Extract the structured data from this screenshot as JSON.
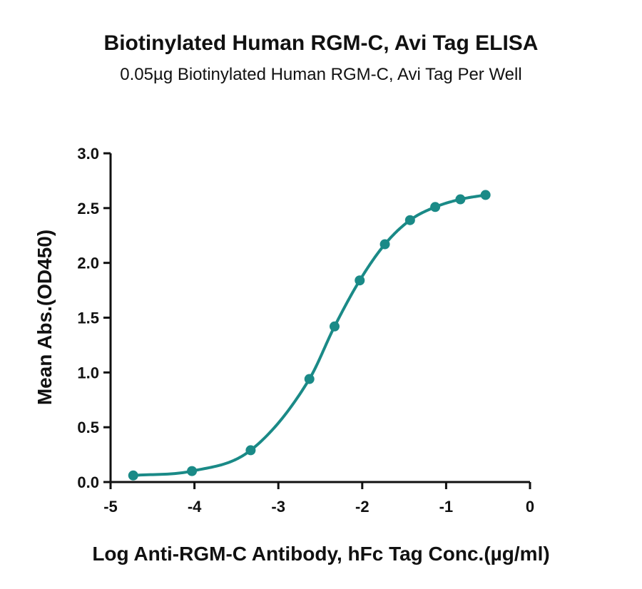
{
  "chart_data": {
    "type": "scatter",
    "title": "Biotinylated Human RGM-C, Avi Tag ELISA",
    "subtitle": "0.05µg Biotinylated Human RGM-C, Avi Tag Per Well",
    "xlabel": "Log Anti-RGM-C Antibody, hFc Tag Conc.(µg/ml)",
    "ylabel": "Mean Abs.(OD450)",
    "xlim": [
      -5,
      0
    ],
    "ylim": [
      0,
      3.0
    ],
    "x_ticks": [
      -5,
      -4,
      -3,
      -2,
      -1,
      0
    ],
    "x_tick_labels": [
      "-5",
      "-4",
      "-3",
      "-2",
      "-1",
      "0"
    ],
    "y_ticks": [
      0,
      0.5,
      1.0,
      1.5,
      2.0,
      2.5,
      3.0
    ],
    "y_tick_labels": [
      "0.0",
      "0.5",
      "1.0",
      "1.5",
      "2.0",
      "2.5",
      "3.0"
    ],
    "grid": false,
    "fit": "sigmoidal",
    "color": "#1a8a87",
    "series": [
      {
        "x": [
          -4.73,
          -4.03,
          -3.33,
          -2.63,
          -2.33,
          -2.03,
          -1.73,
          -1.43,
          -1.13,
          -0.83,
          -0.53
        ],
        "y": [
          0.06,
          0.1,
          0.29,
          0.94,
          1.42,
          1.84,
          2.17,
          2.39,
          2.51,
          2.58,
          2.62
        ]
      }
    ]
  }
}
